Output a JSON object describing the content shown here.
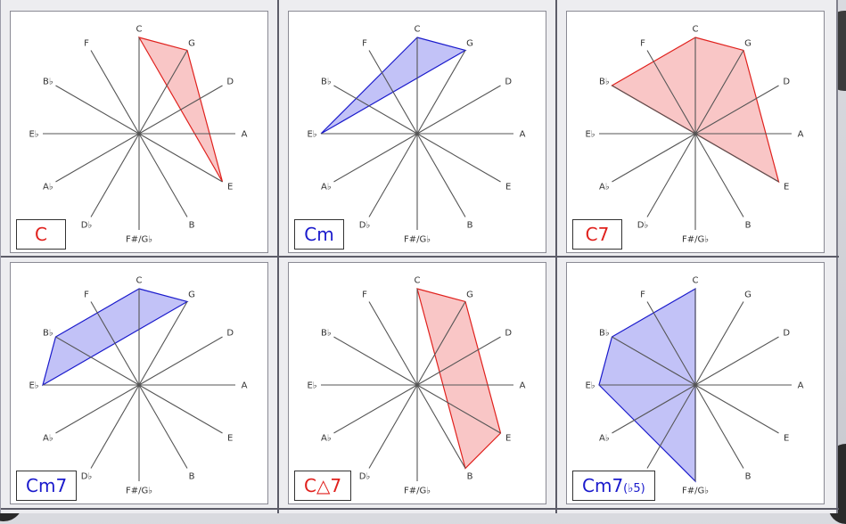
{
  "notes": [
    "C",
    "G",
    "D",
    "A",
    "E",
    "B",
    "F#/G♭",
    "D♭",
    "A♭",
    "E♭",
    "B♭",
    "F"
  ],
  "colors": {
    "major": "#e0211d",
    "minor": "#1a1acc",
    "major_fill": "#f5a0a0",
    "minor_fill": "#9a9af2"
  },
  "panels": [
    {
      "name": "C",
      "label": "C",
      "label_suffix": "",
      "tone": "major",
      "chord_notes": [
        "C",
        "G",
        "E"
      ]
    },
    {
      "name": "Cm",
      "label": "Cm",
      "label_suffix": "",
      "tone": "minor",
      "chord_notes": [
        "C",
        "G",
        "E♭"
      ]
    },
    {
      "name": "C7",
      "label": "C7",
      "label_suffix": "",
      "tone": "major",
      "chord_notes": [
        "C",
        "G",
        "E",
        "B♭"
      ]
    },
    {
      "name": "Cm7",
      "label": "Cm7",
      "label_suffix": "",
      "tone": "minor",
      "chord_notes": [
        "C",
        "G",
        "E♭",
        "B♭"
      ]
    },
    {
      "name": "CM7",
      "label": "C△7",
      "label_suffix": "",
      "tone": "major",
      "chord_notes": [
        "C",
        "G",
        "B",
        "E"
      ]
    },
    {
      "name": "Cm7b5",
      "label": "Cm7",
      "label_suffix": "(♭5)",
      "tone": "minor",
      "chord_notes": [
        "C",
        "F#/G♭",
        "E♭",
        "B♭"
      ]
    }
  ]
}
